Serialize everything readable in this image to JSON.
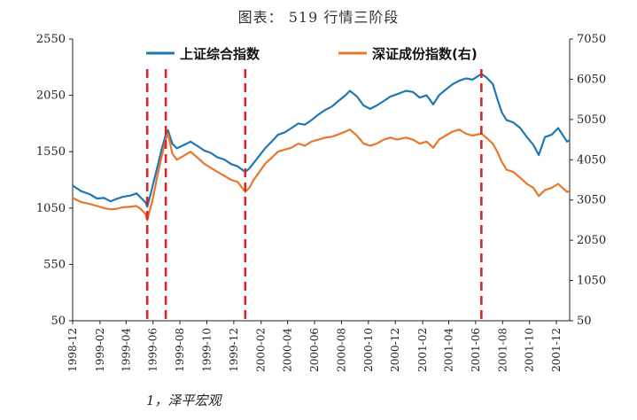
{
  "header": {
    "title": "图表： 519 行情三阶段"
  },
  "footer": {
    "source_text": "1，泽平宏观"
  },
  "colors": {
    "shanghai": "#1f77b4",
    "shenzhen": "#e8772e",
    "marker": "#d62728",
    "axis": "#222222"
  },
  "chart_data": {
    "type": "line",
    "title": "图表： 519 行情三阶段",
    "left_axis": {
      "ylim": [
        50,
        2550
      ],
      "ticks": [
        50,
        550,
        1050,
        1550,
        2050,
        2550
      ]
    },
    "right_axis": {
      "ylim": [
        50,
        7050
      ],
      "ticks": [
        50,
        1050,
        2050,
        3050,
        4050,
        5050,
        6050,
        7050
      ]
    },
    "x_range": [
      "1998-12",
      "2001-12"
    ],
    "x_ticks": [
      "1998-12",
      "1999-02",
      "1999-04",
      "1999-06",
      "1999-08",
      "1999-10",
      "1999-12",
      "2000-02",
      "2000-04",
      "2000-06",
      "2000-08",
      "2000-10",
      "2000-12",
      "2001-02",
      "2001-04",
      "2001-06",
      "2001-08",
      "2001-10",
      "2001-12"
    ],
    "vertical_markers": [
      "1999-05-19",
      "1999-06-30",
      "1999-12-27",
      "2001-06-14"
    ],
    "legend": {
      "placement": "top"
    },
    "series": [
      {
        "name": "上证综合指数",
        "axis": "left",
        "points": [
          [
            "1998-12-01",
            1250
          ],
          [
            "1998-12-20",
            1200
          ],
          [
            "1999-01-10",
            1170
          ],
          [
            "1999-01-25",
            1135
          ],
          [
            "1999-02-10",
            1140
          ],
          [
            "1999-02-25",
            1110
          ],
          [
            "1999-03-10",
            1130
          ],
          [
            "1999-03-25",
            1150
          ],
          [
            "1999-04-10",
            1160
          ],
          [
            "1999-04-25",
            1180
          ],
          [
            "1999-05-05",
            1140
          ],
          [
            "1999-05-15",
            1100
          ],
          [
            "1999-05-19",
            1060
          ],
          [
            "1999-05-25",
            1150
          ],
          [
            "1999-06-01",
            1260
          ],
          [
            "1999-06-10",
            1400
          ],
          [
            "1999-06-20",
            1560
          ],
          [
            "1999-06-30",
            1700
          ],
          [
            "1999-07-05",
            1740
          ],
          [
            "1999-07-15",
            1620
          ],
          [
            "1999-07-25",
            1580
          ],
          [
            "1999-08-10",
            1610
          ],
          [
            "1999-08-25",
            1640
          ],
          [
            "1999-09-10",
            1600
          ],
          [
            "1999-09-25",
            1560
          ],
          [
            "1999-10-10",
            1540
          ],
          [
            "1999-10-25",
            1500
          ],
          [
            "1999-11-10",
            1480
          ],
          [
            "1999-11-25",
            1440
          ],
          [
            "1999-12-10",
            1420
          ],
          [
            "1999-12-27",
            1370
          ],
          [
            "2000-01-05",
            1400
          ],
          [
            "2000-01-15",
            1450
          ],
          [
            "2000-01-25",
            1500
          ],
          [
            "2000-02-10",
            1580
          ],
          [
            "2000-02-25",
            1640
          ],
          [
            "2000-03-10",
            1700
          ],
          [
            "2000-03-25",
            1720
          ],
          [
            "2000-04-10",
            1760
          ],
          [
            "2000-04-25",
            1800
          ],
          [
            "2000-05-10",
            1790
          ],
          [
            "2000-05-25",
            1830
          ],
          [
            "2000-06-10",
            1880
          ],
          [
            "2000-06-25",
            1920
          ],
          [
            "2000-07-10",
            1950
          ],
          [
            "2000-07-25",
            2000
          ],
          [
            "2000-08-10",
            2050
          ],
          [
            "2000-08-20",
            2090
          ],
          [
            "2000-09-05",
            2040
          ],
          [
            "2000-09-20",
            1960
          ],
          [
            "2000-10-05",
            1930
          ],
          [
            "2000-10-20",
            1960
          ],
          [
            "2000-11-05",
            2000
          ],
          [
            "2000-11-20",
            2040
          ],
          [
            "2000-12-05",
            2060
          ],
          [
            "2000-12-25",
            2090
          ],
          [
            "2001-01-10",
            2080
          ],
          [
            "2001-01-25",
            2030
          ],
          [
            "2001-02-10",
            2050
          ],
          [
            "2001-02-25",
            1970
          ],
          [
            "2001-03-10",
            2050
          ],
          [
            "2001-03-25",
            2100
          ],
          [
            "2001-04-10",
            2150
          ],
          [
            "2001-04-25",
            2180
          ],
          [
            "2001-05-10",
            2200
          ],
          [
            "2001-05-25",
            2190
          ],
          [
            "2001-06-14",
            2240
          ],
          [
            "2001-06-25",
            2210
          ],
          [
            "2001-07-10",
            2150
          ],
          [
            "2001-07-20",
            2020
          ],
          [
            "2001-07-30",
            1900
          ],
          [
            "2001-08-10",
            1830
          ],
          [
            "2001-08-25",
            1810
          ],
          [
            "2001-09-10",
            1760
          ],
          [
            "2001-09-25",
            1680
          ],
          [
            "2001-10-10",
            1610
          ],
          [
            "2001-10-22",
            1520
          ],
          [
            "2001-11-05",
            1680
          ],
          [
            "2001-11-20",
            1700
          ],
          [
            "2001-12-05",
            1760
          ],
          [
            "2001-12-15",
            1700
          ],
          [
            "2001-12-25",
            1640
          ],
          [
            "2001-12-31",
            1650
          ]
        ]
      },
      {
        "name": "深证成份指数(右)",
        "axis": "right",
        "points": [
          [
            "1998-12-01",
            3100
          ],
          [
            "1998-12-20",
            3000
          ],
          [
            "1999-01-10",
            2950
          ],
          [
            "1999-01-25",
            2900
          ],
          [
            "1999-02-10",
            2850
          ],
          [
            "1999-02-25",
            2820
          ],
          [
            "1999-03-10",
            2830
          ],
          [
            "1999-03-25",
            2870
          ],
          [
            "1999-04-10",
            2880
          ],
          [
            "1999-04-25",
            2900
          ],
          [
            "1999-05-05",
            2820
          ],
          [
            "1999-05-15",
            2700
          ],
          [
            "1999-05-19",
            2550
          ],
          [
            "1999-05-25",
            2800
          ],
          [
            "1999-06-01",
            3100
          ],
          [
            "1999-06-10",
            3600
          ],
          [
            "1999-06-20",
            4100
          ],
          [
            "1999-06-30",
            4550
          ],
          [
            "1999-07-05",
            4700
          ],
          [
            "1999-07-15",
            4200
          ],
          [
            "1999-07-25",
            4050
          ],
          [
            "1999-08-10",
            4150
          ],
          [
            "1999-08-25",
            4250
          ],
          [
            "1999-09-10",
            4100
          ],
          [
            "1999-09-25",
            3950
          ],
          [
            "1999-10-10",
            3850
          ],
          [
            "1999-10-25",
            3750
          ],
          [
            "1999-11-10",
            3650
          ],
          [
            "1999-11-25",
            3550
          ],
          [
            "1999-12-10",
            3500
          ],
          [
            "1999-12-27",
            3250
          ],
          [
            "2000-01-05",
            3350
          ],
          [
            "2000-01-15",
            3550
          ],
          [
            "2000-01-25",
            3700
          ],
          [
            "2000-02-10",
            3950
          ],
          [
            "2000-02-25",
            4100
          ],
          [
            "2000-03-10",
            4250
          ],
          [
            "2000-03-25",
            4300
          ],
          [
            "2000-04-10",
            4350
          ],
          [
            "2000-04-25",
            4450
          ],
          [
            "2000-05-10",
            4400
          ],
          [
            "2000-05-25",
            4500
          ],
          [
            "2000-06-10",
            4550
          ],
          [
            "2000-06-25",
            4600
          ],
          [
            "2000-07-10",
            4620
          ],
          [
            "2000-07-25",
            4680
          ],
          [
            "2000-08-10",
            4750
          ],
          [
            "2000-08-20",
            4800
          ],
          [
            "2000-09-05",
            4650
          ],
          [
            "2000-09-20",
            4450
          ],
          [
            "2000-10-05",
            4400
          ],
          [
            "2000-10-20",
            4450
          ],
          [
            "2000-11-05",
            4550
          ],
          [
            "2000-11-20",
            4600
          ],
          [
            "2000-12-05",
            4550
          ],
          [
            "2000-12-25",
            4600
          ],
          [
            "2001-01-10",
            4550
          ],
          [
            "2001-01-25",
            4450
          ],
          [
            "2001-02-10",
            4500
          ],
          [
            "2001-02-25",
            4350
          ],
          [
            "2001-03-10",
            4550
          ],
          [
            "2001-03-25",
            4650
          ],
          [
            "2001-04-10",
            4750
          ],
          [
            "2001-04-25",
            4800
          ],
          [
            "2001-05-10",
            4700
          ],
          [
            "2001-05-25",
            4650
          ],
          [
            "2001-06-14",
            4700
          ],
          [
            "2001-06-25",
            4600
          ],
          [
            "2001-07-10",
            4450
          ],
          [
            "2001-07-20",
            4250
          ],
          [
            "2001-07-30",
            4000
          ],
          [
            "2001-08-10",
            3800
          ],
          [
            "2001-08-25",
            3750
          ],
          [
            "2001-09-10",
            3600
          ],
          [
            "2001-09-25",
            3450
          ],
          [
            "2001-10-10",
            3350
          ],
          [
            "2001-10-22",
            3150
          ],
          [
            "2001-11-05",
            3300
          ],
          [
            "2001-11-20",
            3350
          ],
          [
            "2001-12-05",
            3450
          ],
          [
            "2001-12-15",
            3350
          ],
          [
            "2001-12-25",
            3250
          ],
          [
            "2001-12-31",
            3270
          ]
        ]
      }
    ]
  }
}
